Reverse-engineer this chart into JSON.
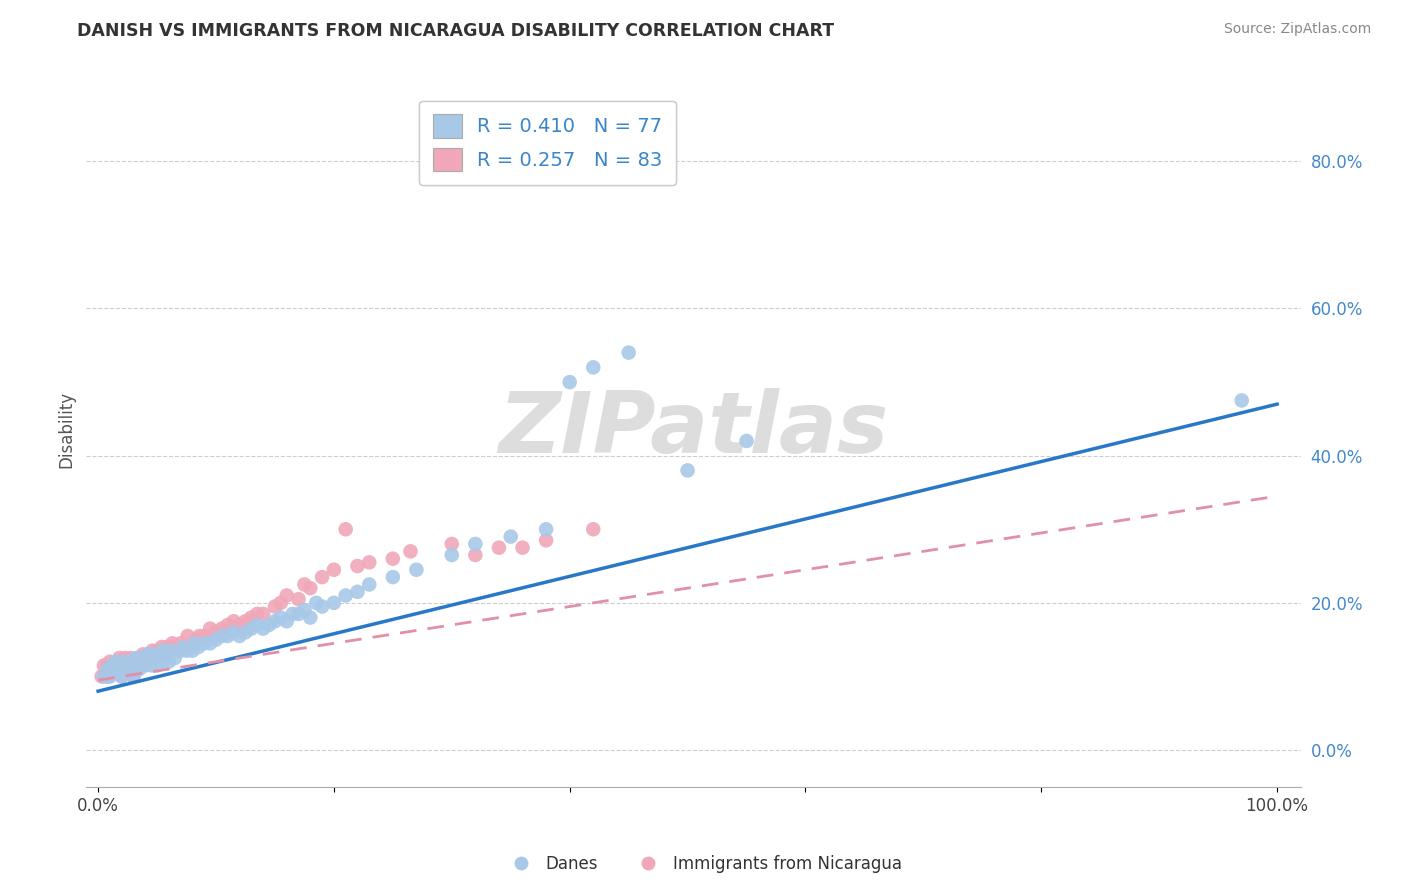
{
  "title": "DANISH VS IMMIGRANTS FROM NICARAGUA DISABILITY CORRELATION CHART",
  "source": "Source: ZipAtlas.com",
  "ylabel": "Disability",
  "xlim": [
    -0.01,
    1.02
  ],
  "ylim": [
    -0.05,
    0.92
  ],
  "x_ticks": [
    0.0,
    0.2,
    0.4,
    0.6,
    0.8,
    1.0
  ],
  "x_tick_labels": [
    "0.0%",
    "",
    "",
    "",
    "",
    "100.0%"
  ],
  "y_ticks": [
    0.0,
    0.2,
    0.4,
    0.6,
    0.8
  ],
  "y_tick_labels_right": [
    "0.0%",
    "20.0%",
    "40.0%",
    "60.0%",
    "80.0%"
  ],
  "danes_color": "#a8c8e8",
  "nicaragua_color": "#f0a8b8",
  "danes_line_color": "#2878c8",
  "nicaragua_line_color": "#e090a8",
  "legend_blue_label": "R = 0.410   N = 77",
  "legend_pink_label": "R = 0.257   N = 83",
  "danes_label": "Danes",
  "nicaragua_label": "Immigrants from Nicaragua",
  "background_color": "#ffffff",
  "grid_color": "#c8c8c8",
  "danes_line_x0": 0.0,
  "danes_line_y0": 0.08,
  "danes_line_x1": 1.0,
  "danes_line_y1": 0.47,
  "nic_line_x0": 0.0,
  "nic_line_y0": 0.095,
  "nic_line_x1": 1.0,
  "nic_line_y1": 0.345,
  "danes_x": [
    0.005,
    0.008,
    0.01,
    0.012,
    0.015,
    0.015,
    0.018,
    0.02,
    0.02,
    0.022,
    0.025,
    0.025,
    0.028,
    0.03,
    0.03,
    0.032,
    0.035,
    0.035,
    0.038,
    0.04,
    0.04,
    0.042,
    0.045,
    0.045,
    0.048,
    0.05,
    0.05,
    0.052,
    0.055,
    0.055,
    0.058,
    0.06,
    0.062,
    0.065,
    0.07,
    0.072,
    0.075,
    0.08,
    0.082,
    0.085,
    0.09,
    0.095,
    0.1,
    0.105,
    0.11,
    0.115,
    0.12,
    0.125,
    0.13,
    0.135,
    0.14,
    0.145,
    0.15,
    0.155,
    0.16,
    0.165,
    0.17,
    0.175,
    0.18,
    0.185,
    0.19,
    0.2,
    0.21,
    0.22,
    0.23,
    0.25,
    0.27,
    0.3,
    0.32,
    0.35,
    0.38,
    0.4,
    0.42,
    0.45,
    0.5,
    0.55,
    0.97
  ],
  "danes_y": [
    0.1,
    0.11,
    0.1,
    0.115,
    0.105,
    0.12,
    0.11,
    0.1,
    0.115,
    0.12,
    0.105,
    0.115,
    0.12,
    0.1,
    0.115,
    0.125,
    0.11,
    0.125,
    0.115,
    0.115,
    0.125,
    0.13,
    0.115,
    0.13,
    0.12,
    0.115,
    0.125,
    0.13,
    0.12,
    0.135,
    0.125,
    0.12,
    0.135,
    0.125,
    0.135,
    0.14,
    0.135,
    0.135,
    0.145,
    0.14,
    0.145,
    0.145,
    0.15,
    0.155,
    0.155,
    0.16,
    0.155,
    0.16,
    0.165,
    0.17,
    0.165,
    0.17,
    0.175,
    0.18,
    0.175,
    0.185,
    0.185,
    0.19,
    0.18,
    0.2,
    0.195,
    0.2,
    0.21,
    0.215,
    0.225,
    0.235,
    0.245,
    0.265,
    0.28,
    0.29,
    0.3,
    0.5,
    0.52,
    0.54,
    0.38,
    0.42,
    0.475
  ],
  "nicaragua_x": [
    0.003,
    0.005,
    0.007,
    0.008,
    0.009,
    0.01,
    0.01,
    0.012,
    0.013,
    0.014,
    0.015,
    0.016,
    0.017,
    0.018,
    0.019,
    0.02,
    0.02,
    0.022,
    0.023,
    0.024,
    0.025,
    0.026,
    0.027,
    0.028,
    0.029,
    0.03,
    0.03,
    0.032,
    0.033,
    0.034,
    0.035,
    0.036,
    0.037,
    0.038,
    0.04,
    0.042,
    0.044,
    0.046,
    0.048,
    0.05,
    0.052,
    0.054,
    0.056,
    0.058,
    0.06,
    0.063,
    0.066,
    0.07,
    0.073,
    0.076,
    0.08,
    0.083,
    0.086,
    0.09,
    0.095,
    0.1,
    0.105,
    0.11,
    0.115,
    0.12,
    0.125,
    0.13,
    0.135,
    0.14,
    0.15,
    0.155,
    0.16,
    0.17,
    0.175,
    0.18,
    0.19,
    0.2,
    0.21,
    0.22,
    0.23,
    0.25,
    0.265,
    0.3,
    0.32,
    0.34,
    0.36,
    0.38,
    0.42
  ],
  "nicaragua_y": [
    0.1,
    0.115,
    0.1,
    0.115,
    0.1,
    0.105,
    0.12,
    0.11,
    0.115,
    0.105,
    0.12,
    0.115,
    0.105,
    0.125,
    0.12,
    0.1,
    0.115,
    0.11,
    0.125,
    0.12,
    0.105,
    0.12,
    0.115,
    0.125,
    0.115,
    0.1,
    0.12,
    0.115,
    0.12,
    0.115,
    0.125,
    0.115,
    0.12,
    0.13,
    0.125,
    0.13,
    0.125,
    0.135,
    0.13,
    0.135,
    0.13,
    0.14,
    0.13,
    0.14,
    0.135,
    0.145,
    0.14,
    0.145,
    0.14,
    0.155,
    0.145,
    0.15,
    0.155,
    0.155,
    0.165,
    0.16,
    0.165,
    0.17,
    0.175,
    0.17,
    0.175,
    0.18,
    0.185,
    0.185,
    0.195,
    0.2,
    0.21,
    0.205,
    0.225,
    0.22,
    0.235,
    0.245,
    0.3,
    0.25,
    0.255,
    0.26,
    0.27,
    0.28,
    0.265,
    0.275,
    0.275,
    0.285,
    0.3
  ]
}
